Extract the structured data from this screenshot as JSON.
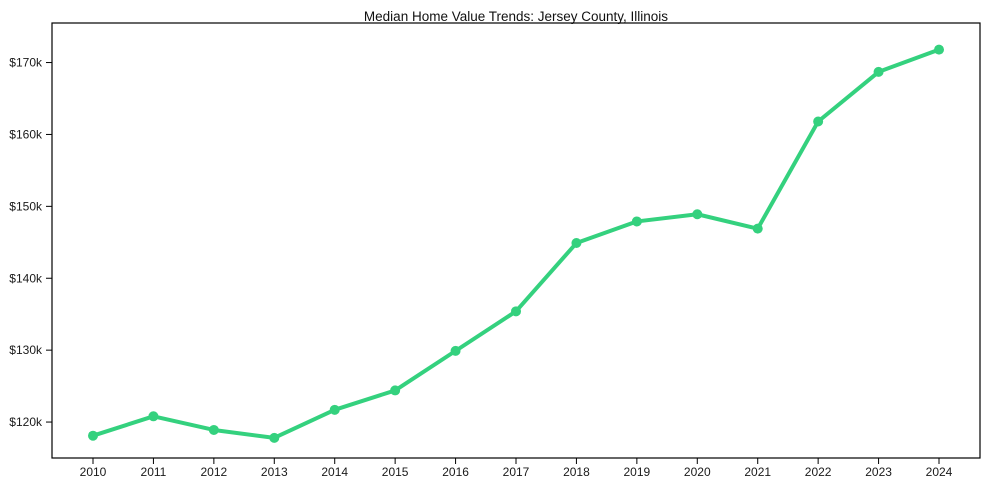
{
  "chart_data": {
    "type": "line",
    "title": "Median Home Value Trends: Jersey County, Illinois",
    "x": [
      2010,
      2011,
      2012,
      2013,
      2014,
      2015,
      2016,
      2017,
      2018,
      2019,
      2020,
      2021,
      2022,
      2023,
      2024
    ],
    "xtick_labels": [
      "2010",
      "2011",
      "2012",
      "2013",
      "2014",
      "2015",
      "2016",
      "2017",
      "2018",
      "2019",
      "2020",
      "2021",
      "2022",
      "2023",
      "2024"
    ],
    "series": [
      {
        "name": "Median Home Value",
        "values": [
          118100,
          120800,
          118900,
          117800,
          121700,
          124400,
          129900,
          135400,
          144900,
          147900,
          148900,
          146900,
          161800,
          168700,
          171800
        ]
      }
    ],
    "xlabel": "",
    "ylabel": "",
    "ylim": [
      115000,
      175500
    ],
    "yticks": [
      {
        "value": 120000,
        "label": "$120k"
      },
      {
        "value": 130000,
        "label": "$130k"
      },
      {
        "value": 140000,
        "label": "$140k"
      },
      {
        "value": 150000,
        "label": "$150k"
      },
      {
        "value": 160000,
        "label": "$160k"
      },
      {
        "value": 170000,
        "label": "$170k"
      }
    ],
    "grid": false,
    "legend_position": "none",
    "line_color": "#34d17e",
    "marker": "circle",
    "background_color": "#ffffff",
    "axis_color": "#000000",
    "text_color": "#1a1a1a"
  }
}
